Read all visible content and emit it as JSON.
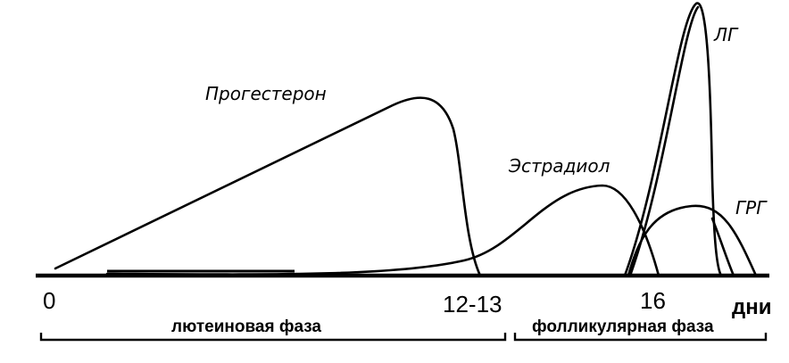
{
  "curves": {
    "progesterone": "Прогестерон",
    "estradiol": "Эстрадиол",
    "lh": "ЛГ",
    "grg": "ГРГ"
  },
  "axis": {
    "tick_0": "0",
    "tick_12_13": "12-13",
    "tick_16": "16",
    "unit": "дни"
  },
  "phases": {
    "luteal": "лютеиновая фаза",
    "follicular": "фолликулярная фаза"
  }
}
